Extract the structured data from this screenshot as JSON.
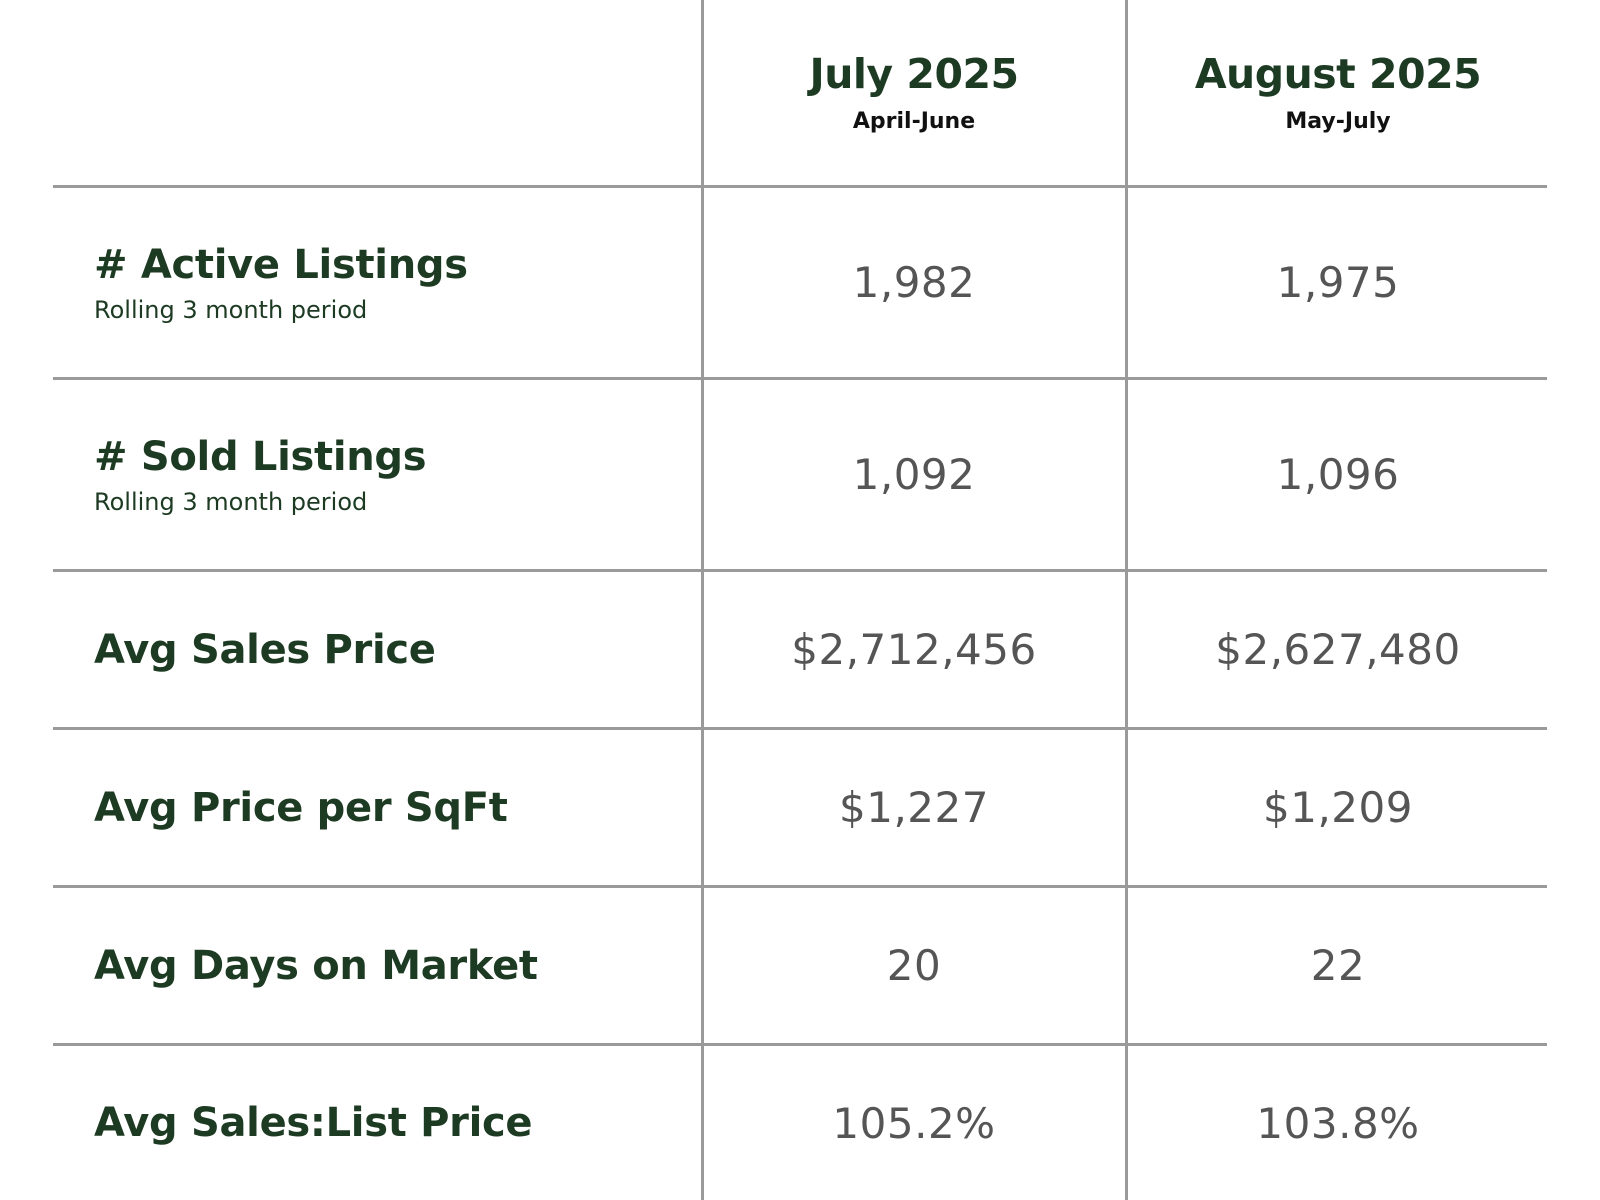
{
  "columns": [
    {
      "title": "July 2025",
      "subtitle": "April-June"
    },
    {
      "title": "August 2025",
      "subtitle": "May-July"
    }
  ],
  "rows": [
    {
      "label": "# Active Listings",
      "sublabel": "Rolling 3 month period",
      "values": [
        "1,982",
        "1,975"
      ]
    },
    {
      "label": "# Sold Listings",
      "sublabel": "Rolling 3 month period",
      "values": [
        "1,092",
        "1,096"
      ]
    },
    {
      "label": "Avg Sales Price",
      "sublabel": "",
      "values": [
        "$2,712,456",
        "$2,627,480"
      ]
    },
    {
      "label": "Avg Price per SqFt",
      "sublabel": "",
      "values": [
        "$1,227",
        "$1,209"
      ]
    },
    {
      "label": "Avg Days on Market",
      "sublabel": "",
      "values": [
        "20",
        "22"
      ]
    },
    {
      "label": "Avg Sales:List Price",
      "sublabel": "",
      "values": [
        "105.2%",
        "103.8%"
      ]
    }
  ],
  "colors": {
    "heading": "#1d3a22",
    "value": "#555555",
    "rule": "#9a9a9a"
  }
}
